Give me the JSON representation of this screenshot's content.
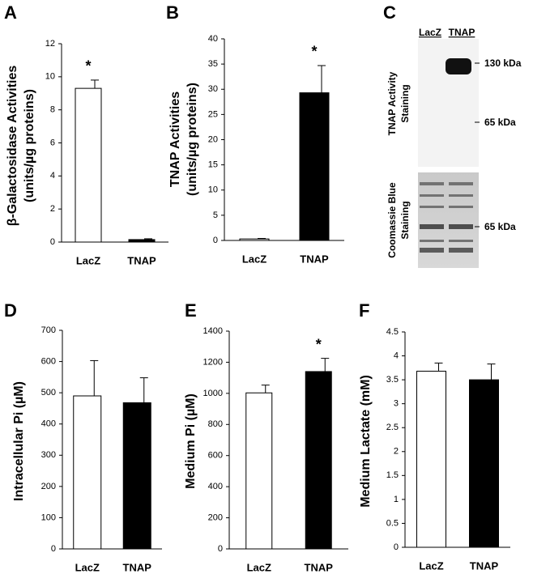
{
  "chart_data": [
    {
      "type": "bar",
      "panel": "A",
      "ylabel": [
        "β-Galactosidase Activities",
        "(units/µg proteins)"
      ],
      "categories": [
        "LacZ",
        "TNAP"
      ],
      "values": [
        9.3,
        0.15
      ],
      "errors": [
        0.5,
        0.05
      ],
      "colors": [
        "#ffffff",
        "#000000"
      ],
      "annotations": [
        "*",
        null
      ],
      "ylim": [
        0,
        12
      ],
      "yticks": [
        0,
        2,
        4,
        6,
        8,
        10,
        12
      ]
    },
    {
      "type": "bar",
      "panel": "B",
      "ylabel": [
        "TNAP Activities",
        "(units/µg proteins)"
      ],
      "categories": [
        "LacZ",
        "TNAP"
      ],
      "values": [
        0.3,
        29.3
      ],
      "errors": [
        0.1,
        5.4
      ],
      "colors": [
        "#ffffff",
        "#000000"
      ],
      "annotations": [
        null,
        "*"
      ],
      "ylim": [
        0,
        40
      ],
      "yticks": [
        0,
        5,
        10,
        15,
        20,
        25,
        30,
        35,
        40
      ]
    },
    {
      "type": "bar",
      "panel": "D",
      "ylabel": [
        "Intracellular Pi (µM)"
      ],
      "categories": [
        "LacZ",
        "TNAP"
      ],
      "values": [
        490,
        468
      ],
      "errors": [
        113,
        80
      ],
      "colors": [
        "#ffffff",
        "#000000"
      ],
      "annotations": [
        null,
        null
      ],
      "ylim": [
        0,
        700
      ],
      "yticks": [
        0,
        100,
        200,
        300,
        400,
        500,
        600,
        700
      ]
    },
    {
      "type": "bar",
      "panel": "E",
      "ylabel": [
        "Medium Pi (µM)"
      ],
      "categories": [
        "LacZ",
        "TNAP"
      ],
      "values": [
        1003,
        1140
      ],
      "errors": [
        50,
        85
      ],
      "colors": [
        "#ffffff",
        "#000000"
      ],
      "annotations": [
        null,
        "*"
      ],
      "ylim": [
        0,
        1400
      ],
      "yticks": [
        0,
        200,
        400,
        600,
        800,
        1000,
        1200,
        1400
      ]
    },
    {
      "type": "bar",
      "panel": "F",
      "ylabel": [
        "Medium Lactate (mM)"
      ],
      "categories": [
        "LacZ",
        "TNAP"
      ],
      "values": [
        3.68,
        3.5
      ],
      "errors": [
        0.17,
        0.33
      ],
      "colors": [
        "#ffffff",
        "#000000"
      ],
      "annotations": [
        null,
        null
      ],
      "ylim": [
        0,
        4.5
      ],
      "yticks": [
        0,
        0.5,
        1,
        1.5,
        2,
        2.5,
        3,
        3.5,
        4,
        4.5
      ]
    }
  ],
  "blot": {
    "panel": "C",
    "lanes": [
      "LacZ",
      "TNAP"
    ],
    "markers_top": [
      "130 kDa",
      "65 kDa"
    ],
    "label_top": [
      "TNAP Activity",
      "Staining"
    ],
    "label_bottom": [
      "Coomassie Blue",
      "Staining"
    ],
    "markers_bottom": [
      "65 kDa"
    ]
  }
}
